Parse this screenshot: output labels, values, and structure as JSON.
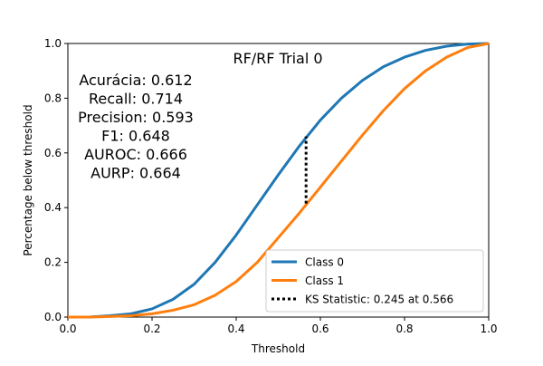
{
  "chart_data": {
    "type": "line",
    "title": "RF/RF Trial 0",
    "xlabel": "Threshold",
    "ylabel": "Percentage below threshold",
    "xlim": [
      0.0,
      1.0
    ],
    "ylim": [
      0.0,
      1.0
    ],
    "x_ticks": [
      "0.0",
      "0.2",
      "0.4",
      "0.6",
      "0.8",
      "1.0"
    ],
    "y_ticks": [
      "0.0",
      "0.2",
      "0.4",
      "0.6",
      "0.8",
      "1.0"
    ],
    "grid": false,
    "legend_position": "lower-right",
    "metrics_text": [
      "Acurácia: 0.612",
      "Recall: 0.714",
      "Precision: 0.593",
      "F1: 0.648",
      "AUROC: 0.666",
      "AURP: 0.664"
    ],
    "series": [
      {
        "name": "Class 0",
        "color": "#1f77b4",
        "x": [
          0.0,
          0.05,
          0.1,
          0.15,
          0.2,
          0.25,
          0.3,
          0.35,
          0.4,
          0.45,
          0.5,
          0.55,
          0.6,
          0.65,
          0.7,
          0.75,
          0.8,
          0.85,
          0.9,
          0.95,
          1.0
        ],
        "y": [
          0.0,
          0.0,
          0.005,
          0.012,
          0.03,
          0.065,
          0.12,
          0.2,
          0.3,
          0.41,
          0.52,
          0.625,
          0.72,
          0.8,
          0.865,
          0.915,
          0.95,
          0.975,
          0.99,
          0.998,
          1.0
        ]
      },
      {
        "name": "Class 1",
        "color": "#ff7f0e",
        "x": [
          0.0,
          0.05,
          0.1,
          0.15,
          0.2,
          0.25,
          0.3,
          0.35,
          0.4,
          0.45,
          0.5,
          0.55,
          0.6,
          0.65,
          0.7,
          0.75,
          0.8,
          0.85,
          0.9,
          0.95,
          1.0
        ],
        "y": [
          0.0,
          0.0,
          0.002,
          0.005,
          0.012,
          0.025,
          0.045,
          0.08,
          0.13,
          0.2,
          0.29,
          0.38,
          0.475,
          0.57,
          0.665,
          0.755,
          0.835,
          0.9,
          0.95,
          0.985,
          1.0
        ]
      }
    ],
    "ks_statistic": {
      "name": "KS Statistic: 0.245 at 0.566",
      "color": "#000000",
      "x": 0.566,
      "y_low": 0.415,
      "y_high": 0.66
    }
  }
}
